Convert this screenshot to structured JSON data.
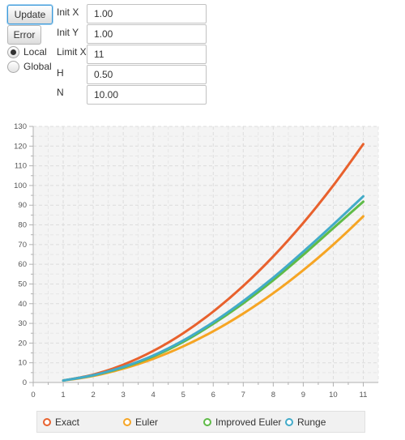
{
  "controls": {
    "update_label": "Update",
    "error_label": "Error",
    "radio_local_label": "Local",
    "radio_global_label": "Global",
    "selected_mode": "Local"
  },
  "fields": [
    {
      "label": "Init X",
      "value": "1.00"
    },
    {
      "label": "Init Y",
      "value": "1.00"
    },
    {
      "label": "Limit X",
      "value": "11"
    },
    {
      "label": "H",
      "value": "0.50"
    },
    {
      "label": "N",
      "value": "10.00"
    }
  ],
  "legend": [
    {
      "label": "Exact",
      "color": "#e8612d"
    },
    {
      "label": "Euler",
      "color": "#f6a524"
    },
    {
      "label": "Improved Euler",
      "color": "#5fbb47"
    },
    {
      "label": "Runge",
      "color": "#42abc9"
    }
  ],
  "chart_data": {
    "type": "line",
    "x_ticks": [
      0,
      1,
      2,
      3,
      4,
      5,
      6,
      7,
      8,
      9,
      10,
      11
    ],
    "y_ticks": [
      0,
      10,
      20,
      30,
      40,
      50,
      60,
      70,
      80,
      90,
      100,
      110,
      120,
      130
    ],
    "xlim": [
      0,
      11.5
    ],
    "ylim": [
      0,
      130
    ],
    "grid": true,
    "legend_position": "bottom",
    "series": [
      {
        "name": "Exact",
        "color": "#e8612d",
        "x": [
          1,
          2,
          3,
          4,
          5,
          6,
          7,
          8,
          9,
          10,
          11
        ],
        "y": [
          1,
          4,
          9,
          16,
          25,
          36,
          49,
          64,
          81,
          100,
          121
        ]
      },
      {
        "name": "Euler",
        "color": "#f6a524",
        "x": [
          1,
          1.5,
          2,
          2.5,
          3,
          3.5,
          4,
          4.5,
          5,
          5.5,
          6,
          6.5,
          7,
          7.5,
          8,
          8.5,
          9,
          9.5,
          10,
          10.5,
          11
        ],
        "y": [
          1,
          2,
          3.33,
          5,
          7,
          9.33,
          12,
          15,
          18.33,
          22,
          26,
          30.33,
          35,
          40,
          45.33,
          51,
          57,
          63.33,
          70,
          77,
          84.33
        ]
      },
      {
        "name": "Improved Euler",
        "color": "#5fbb47",
        "x": [
          1,
          2,
          3,
          4,
          5,
          6,
          7,
          8,
          9,
          10,
          11
        ],
        "y": [
          1,
          3.6,
          7.6,
          13.2,
          20.6,
          29.8,
          40.2,
          51.9,
          64.8,
          78.3,
          91.8
        ]
      },
      {
        "name": "Runge",
        "color": "#42abc9",
        "x": [
          1,
          2,
          3,
          4,
          5,
          6,
          7,
          8,
          9,
          10,
          11
        ],
        "y": [
          1,
          3.7,
          7.9,
          13.7,
          21.3,
          30.6,
          41.3,
          53.2,
          66.4,
          80.2,
          94.5
        ]
      }
    ]
  }
}
